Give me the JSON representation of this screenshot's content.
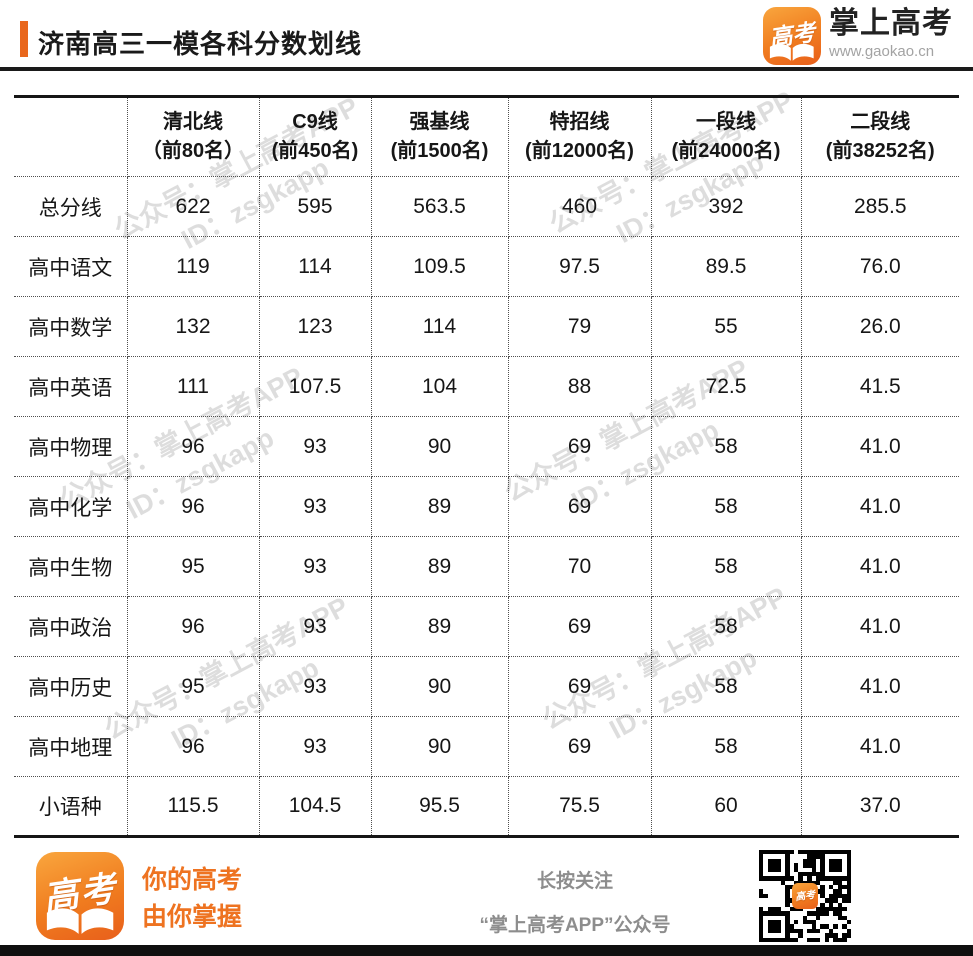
{
  "app_icon_text": "高考",
  "header": {
    "title": "济南高三一模各科分数划线",
    "brand": {
      "name": "掌上高考",
      "url": "www.gaokao.cn"
    }
  },
  "table": {
    "columns": [
      {
        "line1": "清北线",
        "line2": "（前80名）"
      },
      {
        "line1": "C9线",
        "line2": "(前450名)"
      },
      {
        "line1": "强基线",
        "line2": "(前1500名)"
      },
      {
        "line1": "特招线",
        "line2": "(前12000名)"
      },
      {
        "line1": "一段线",
        "line2": "(前24000名)"
      },
      {
        "line1": "二段线",
        "line2": "(前38252名)"
      }
    ],
    "rows": [
      {
        "label": "总分线",
        "values": [
          "622",
          "595",
          "563.5",
          "460",
          "392",
          "285.5"
        ]
      },
      {
        "label": "高中语文",
        "values": [
          "119",
          "114",
          "109.5",
          "97.5",
          "89.5",
          "76.0"
        ]
      },
      {
        "label": "高中数学",
        "values": [
          "132",
          "123",
          "114",
          "79",
          "55",
          "26.0"
        ]
      },
      {
        "label": "高中英语",
        "values": [
          "111",
          "107.5",
          "104",
          "88",
          "72.5",
          "41.5"
        ]
      },
      {
        "label": "高中物理",
        "values": [
          "96",
          "93",
          "90",
          "69",
          "58",
          "41.0"
        ]
      },
      {
        "label": "高中化学",
        "values": [
          "96",
          "93",
          "89",
          "69",
          "58",
          "41.0"
        ]
      },
      {
        "label": "高中生物",
        "values": [
          "95",
          "93",
          "89",
          "70",
          "58",
          "41.0"
        ]
      },
      {
        "label": "高中政治",
        "values": [
          "96",
          "93",
          "89",
          "69",
          "58",
          "41.0"
        ]
      },
      {
        "label": "高中历史",
        "values": [
          "95",
          "93",
          "90",
          "69",
          "58",
          "41.0"
        ]
      },
      {
        "label": "高中地理",
        "values": [
          "96",
          "93",
          "90",
          "69",
          "58",
          "41.0"
        ]
      },
      {
        "label": "小语种",
        "values": [
          "115.5",
          "104.5",
          "95.5",
          "75.5",
          "60",
          "37.0"
        ]
      }
    ]
  },
  "watermark": {
    "line1": "公众号：掌上高考APP",
    "line2": "ID：zsgkapp"
  },
  "footer": {
    "slogan_line1": "你的高考",
    "slogan_line2": "由你掌握",
    "follow_line1": "长按关注",
    "follow_line2": "“掌上高考APP”公众号"
  },
  "colors": {
    "accent": "#ee7321",
    "text": "#1a1a1a",
    "watermark": "#c3c3c3",
    "rule": "#1a1a1a"
  }
}
